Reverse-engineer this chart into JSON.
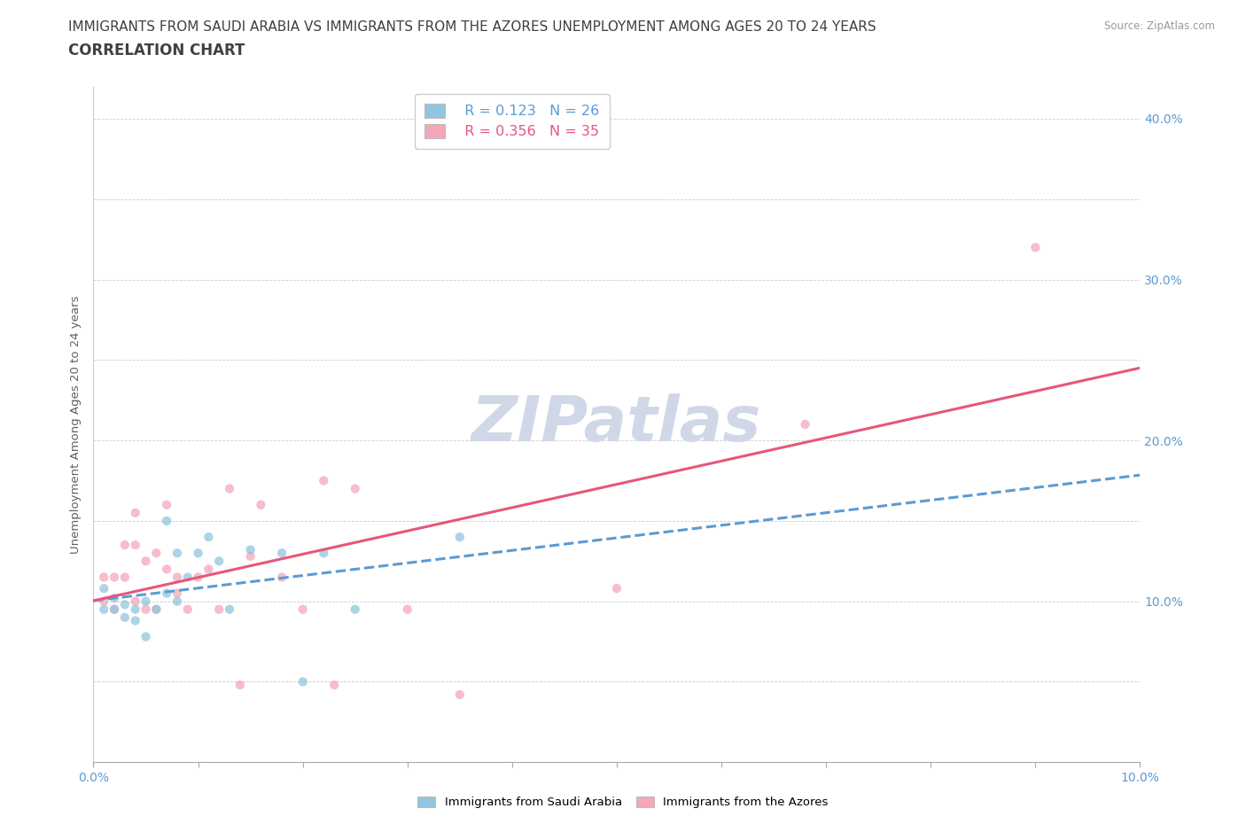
{
  "title_line1": "IMMIGRANTS FROM SAUDI ARABIA VS IMMIGRANTS FROM THE AZORES UNEMPLOYMENT AMONG AGES 20 TO 24 YEARS",
  "title_line2": "CORRELATION CHART",
  "source": "Source: ZipAtlas.com",
  "ylabel_label": "Unemployment Among Ages 20 to 24 years",
  "xlim": [
    0.0,
    0.1
  ],
  "ylim": [
    0.0,
    0.42
  ],
  "xticks": [
    0.0,
    0.01,
    0.02,
    0.03,
    0.04,
    0.05,
    0.06,
    0.07,
    0.08,
    0.09,
    0.1
  ],
  "xtick_labels": [
    "0.0%",
    "",
    "",
    "",
    "",
    "",
    "",
    "",
    "",
    "",
    "10.0%"
  ],
  "right_ytick_labels": [
    "40.0%",
    "30.0%",
    "20.0%",
    "10.0%"
  ],
  "right_yticks": [
    0.4,
    0.3,
    0.2,
    0.1
  ],
  "watermark": "ZIPatlas",
  "legend_R_saudi": "R = 0.123",
  "legend_N_saudi": "N = 26",
  "legend_R_azores": "R = 0.356",
  "legend_N_azores": "N = 35",
  "color_saudi": "#92C5DE",
  "color_azores": "#F4A7B9",
  "trendline_saudi_color": "#5B9BD5",
  "trendline_azores_color": "#E8567A",
  "saudi_x": [
    0.001,
    0.001,
    0.002,
    0.002,
    0.003,
    0.003,
    0.004,
    0.004,
    0.005,
    0.005,
    0.006,
    0.007,
    0.007,
    0.008,
    0.008,
    0.009,
    0.01,
    0.011,
    0.012,
    0.013,
    0.015,
    0.018,
    0.02,
    0.022,
    0.025,
    0.035
  ],
  "saudi_y": [
    0.095,
    0.108,
    0.095,
    0.102,
    0.09,
    0.098,
    0.088,
    0.095,
    0.1,
    0.078,
    0.095,
    0.15,
    0.105,
    0.13,
    0.1,
    0.115,
    0.13,
    0.14,
    0.125,
    0.095,
    0.132,
    0.13,
    0.05,
    0.13,
    0.095,
    0.14
  ],
  "azores_x": [
    0.001,
    0.001,
    0.002,
    0.002,
    0.003,
    0.003,
    0.004,
    0.004,
    0.004,
    0.005,
    0.005,
    0.006,
    0.006,
    0.007,
    0.007,
    0.008,
    0.008,
    0.009,
    0.01,
    0.011,
    0.012,
    0.013,
    0.014,
    0.015,
    0.016,
    0.018,
    0.02,
    0.022,
    0.023,
    0.025,
    0.03,
    0.035,
    0.05,
    0.068,
    0.09
  ],
  "azores_y": [
    0.1,
    0.115,
    0.095,
    0.115,
    0.115,
    0.135,
    0.1,
    0.135,
    0.155,
    0.095,
    0.125,
    0.095,
    0.13,
    0.12,
    0.16,
    0.115,
    0.105,
    0.095,
    0.115,
    0.12,
    0.095,
    0.17,
    0.048,
    0.128,
    0.16,
    0.115,
    0.095,
    0.175,
    0.048,
    0.17,
    0.095,
    0.042,
    0.108,
    0.21,
    0.32
  ],
  "grid_color": "#CCCCCC",
  "background_color": "#FFFFFF",
  "title_color": "#404040",
  "title_fontsize": 11,
  "axis_label_color": "#606060",
  "tick_label_color": "#5B9BD5",
  "watermark_color": "#D0D8E8",
  "watermark_fontsize": 52,
  "scatter_size": 55,
  "scatter_alpha": 0.75,
  "trendline_lw_saudi": 2.2,
  "trendline_lw_azores": 2.2
}
